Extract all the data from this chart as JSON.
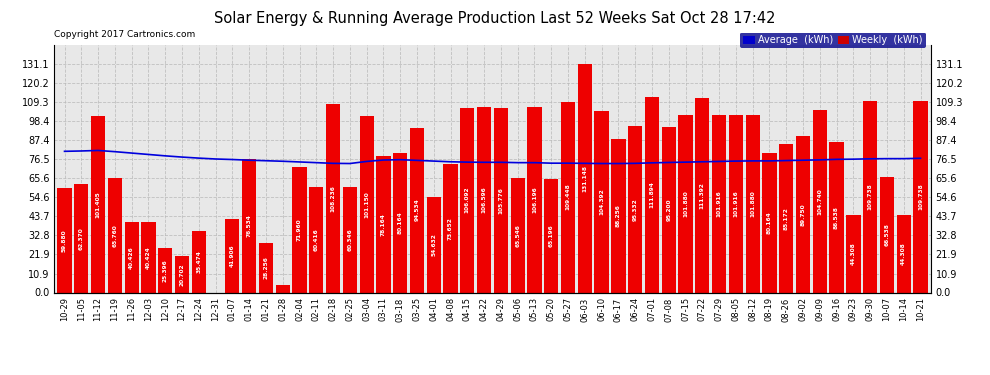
{
  "title": "Solar Energy & Running Average Production Last 52 Weeks Sat Oct 28 17:42",
  "copyright": "Copyright 2017 Cartronics.com",
  "background_color": "#ffffff",
  "plot_bg_color": "#e8e8e8",
  "bar_color": "#ee0000",
  "line_color": "#0000dd",
  "grid_color": "#bbbbbb",
  "ylim": [
    0,
    142
  ],
  "yticks": [
    0.0,
    10.9,
    21.9,
    32.8,
    43.7,
    54.6,
    65.6,
    76.5,
    87.4,
    98.4,
    109.3,
    120.2,
    131.1
  ],
  "legend_avg_color": "#0000cc",
  "legend_weekly_color": "#cc0000",
  "categories": [
    "10-29",
    "11-05",
    "11-12",
    "11-19",
    "11-26",
    "12-03",
    "12-10",
    "12-17",
    "12-24",
    "12-31",
    "01-07",
    "01-14",
    "01-21",
    "01-28",
    "02-04",
    "02-11",
    "02-18",
    "02-25",
    "03-04",
    "03-11",
    "03-18",
    "03-25",
    "04-01",
    "04-08",
    "04-15",
    "04-22",
    "04-29",
    "05-06",
    "05-13",
    "05-20",
    "05-27",
    "06-03",
    "06-10",
    "06-17",
    "06-24",
    "07-01",
    "07-08",
    "07-15",
    "07-22",
    "07-29",
    "08-05",
    "08-12",
    "08-19",
    "08-26",
    "09-02",
    "09-09",
    "09-16",
    "09-23",
    "09-30",
    "10-07",
    "10-14",
    "10-21"
  ],
  "weekly_values": [
    59.88,
    62.37,
    101.405,
    65.76,
    40.426,
    40.424,
    25.396,
    20.702,
    35.474,
    0.0,
    41.906,
    76.534,
    28.256,
    4.312,
    71.96,
    60.416,
    108.236,
    60.346,
    101.15,
    78.164,
    80.164,
    94.534,
    54.632,
    73.652,
    106.092,
    106.596,
    105.776,
    65.546,
    106.196,
    65.196,
    109.448,
    131.148,
    104.392,
    88.256,
    95.332,
    111.894,
    95.2,
    101.88,
    111.392,
    101.916,
    101.916,
    101.88,
    80.164,
    85.172,
    89.75,
    104.74,
    86.538,
    44.308,
    109.738,
    66.538,
    44.308,
    109.738
  ],
  "avg_values": [
    81.0,
    81.2,
    81.5,
    80.8,
    80.0,
    79.2,
    78.4,
    77.7,
    77.1,
    76.6,
    76.3,
    75.9,
    75.6,
    75.3,
    74.9,
    74.5,
    74.1,
    74.0,
    75.2,
    76.0,
    76.2,
    75.8,
    75.4,
    75.0,
    74.8,
    74.7,
    74.7,
    74.5,
    74.5,
    74.2,
    74.2,
    74.1,
    74.0,
    74.0,
    74.1,
    74.4,
    74.6,
    74.8,
    75.0,
    75.2,
    75.4,
    75.5,
    75.5,
    75.7,
    75.9,
    76.1,
    76.4,
    76.5,
    76.7,
    76.8,
    76.8,
    77.0
  ]
}
